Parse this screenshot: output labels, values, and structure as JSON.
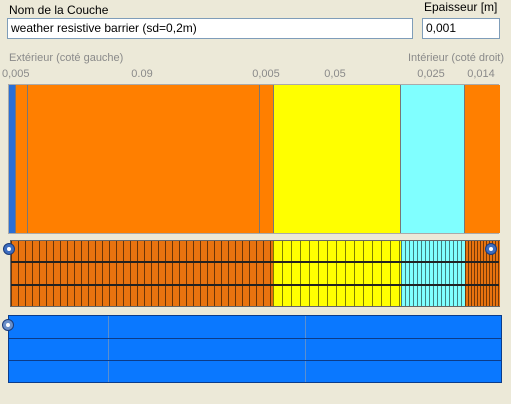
{
  "layer_name": {
    "label": "Nom de la Couche",
    "value": "weather resistive barrier (sd=0,2m)"
  },
  "thickness": {
    "label": "Epaisseur [m]",
    "value": "0,001"
  },
  "sides": {
    "exterior": "Extérieur (coté gauche)",
    "interior": "Intérieur (coté droit)"
  },
  "ticks": [
    "0,005",
    "0.09",
    "0,005",
    "0,05",
    "0,025",
    "0,014"
  ],
  "layers": [
    {
      "color": "#ff7f00"
    },
    {
      "color": "#ff7f00"
    },
    {
      "color": "#ffff00"
    },
    {
      "color": "#80ffff"
    },
    {
      "color": "#ff7f00"
    }
  ],
  "colors": {
    "orange": "#ff7f00",
    "yellow": "#ffff00",
    "cyan": "#80ffff",
    "barrier": "#2a6fd6",
    "bottom_panel": "#0a78ff"
  },
  "icons": {
    "left_handle": "drag-handle-icon",
    "right_handle": "drag-handle-icon",
    "bottom_handle": "radio-handle-icon"
  }
}
